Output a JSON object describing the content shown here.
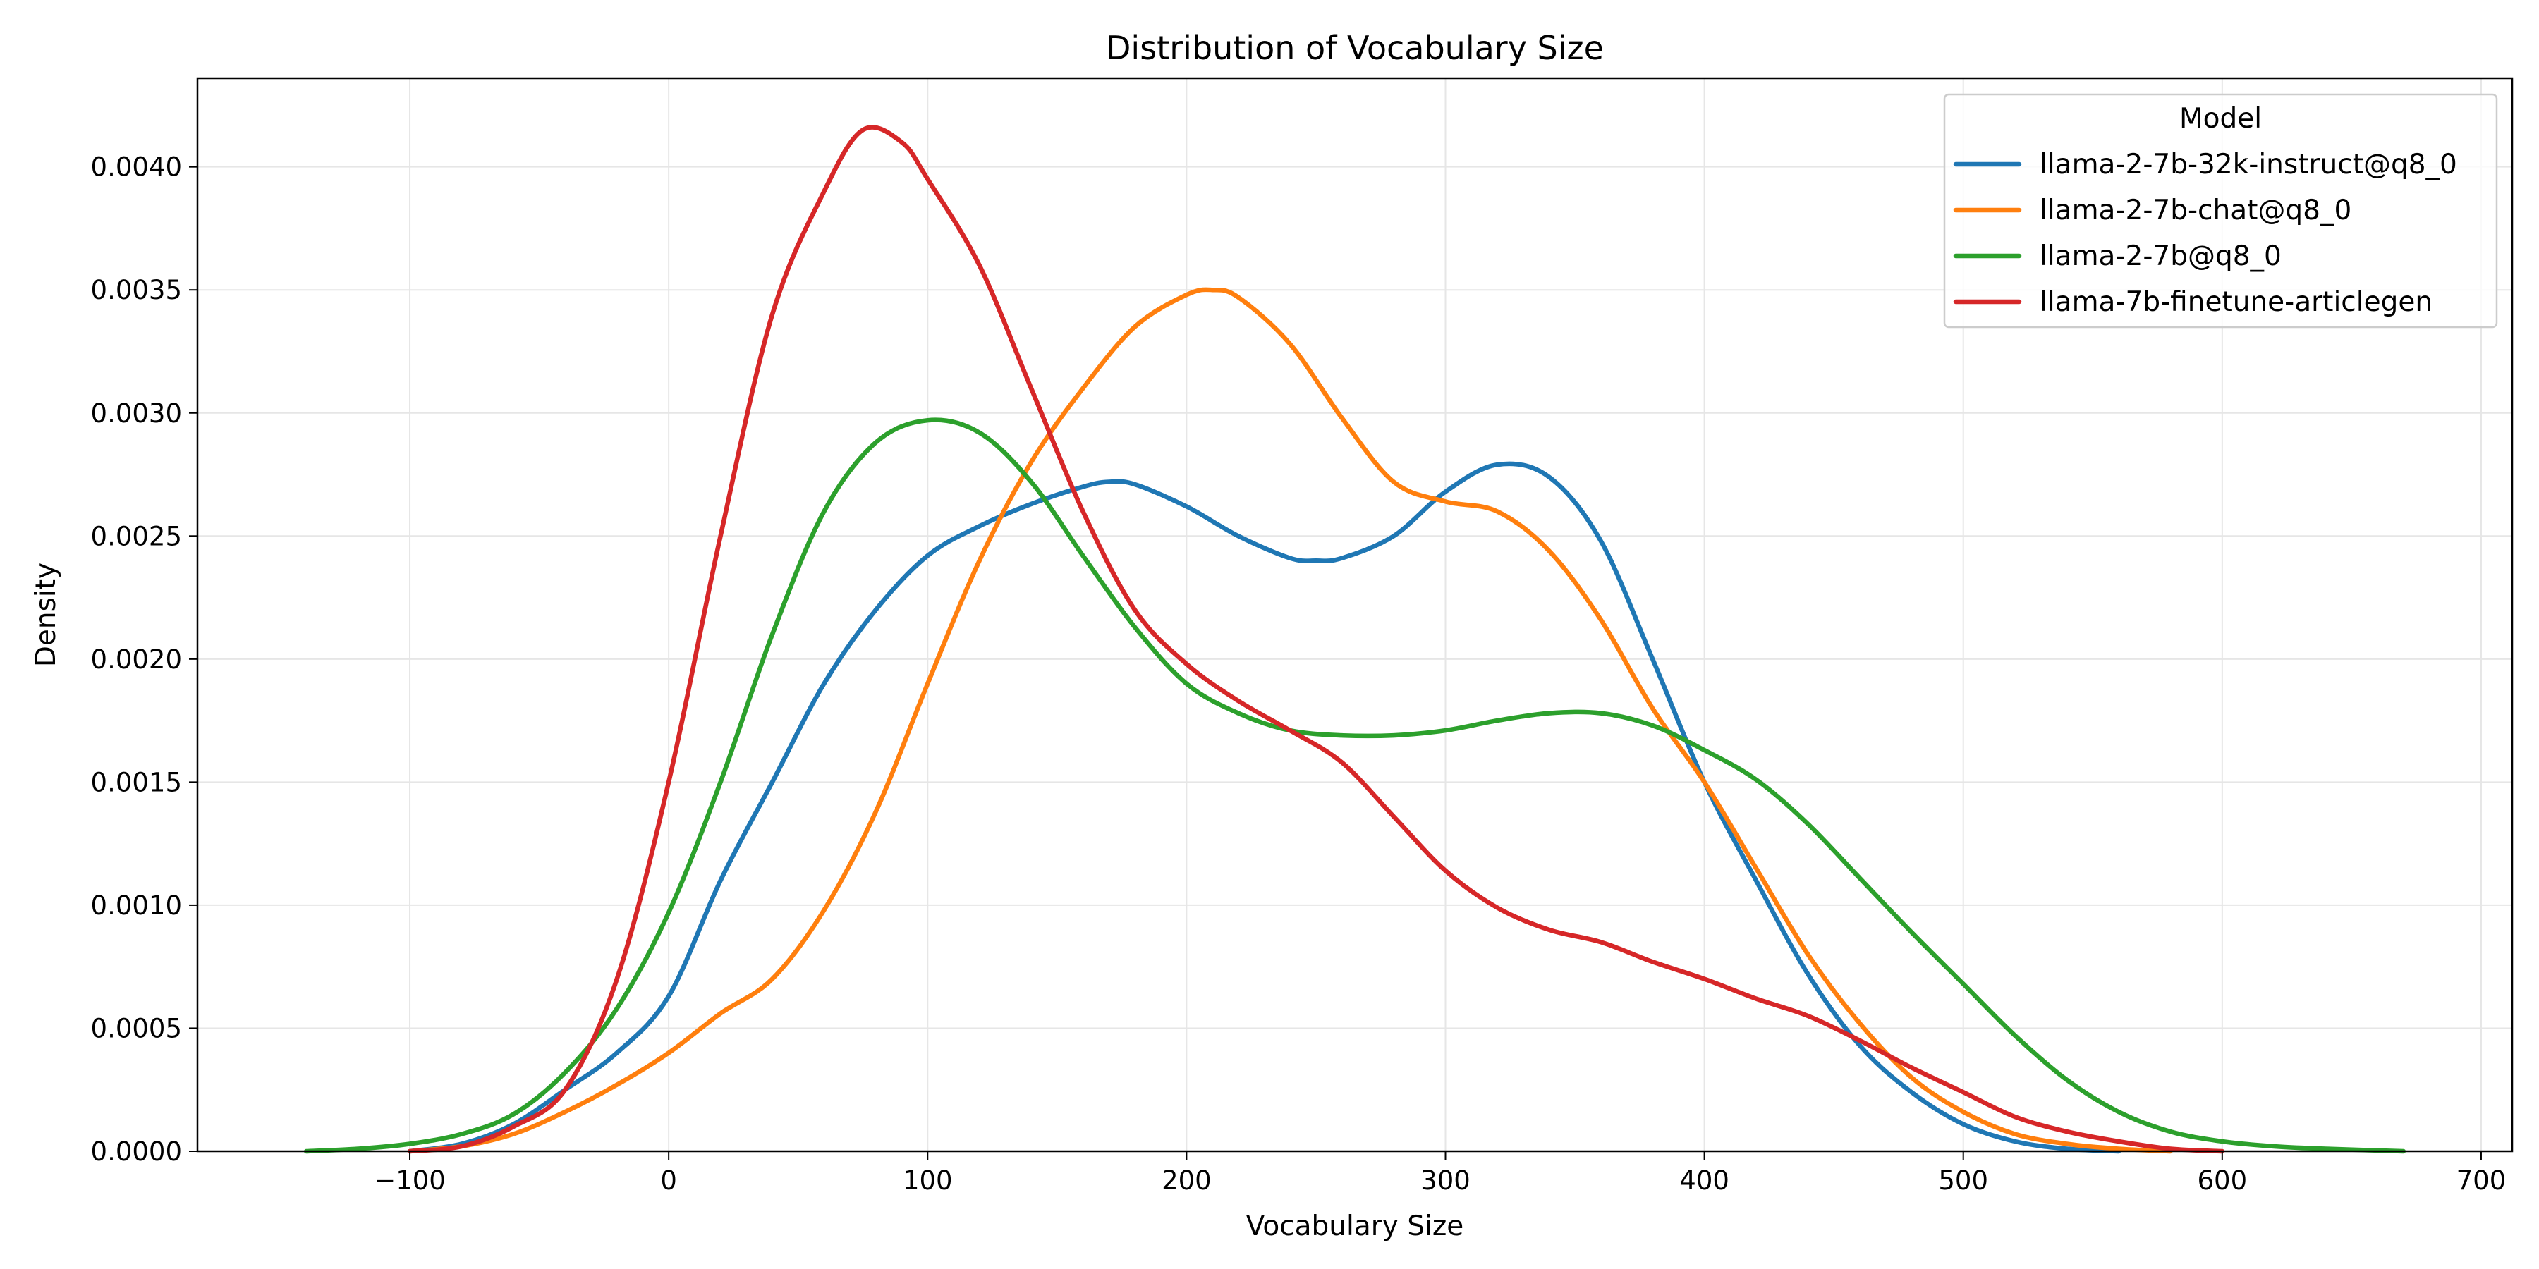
{
  "chart_data": {
    "type": "line",
    "title": "Distribution of Vocabulary Size",
    "xlabel": "Vocabulary Size",
    "ylabel": "Density",
    "xlim": [
      -182,
      712
    ],
    "ylim": [
      0,
      0.00436
    ],
    "xticks": [
      -100,
      0,
      100,
      200,
      300,
      400,
      500,
      600,
      700
    ],
    "xtick_labels": [
      "−100",
      "0",
      "100",
      "200",
      "300",
      "400",
      "500",
      "600",
      "700"
    ],
    "yticks": [
      0,
      0.0005,
      0.001,
      0.0015,
      0.002,
      0.0025,
      0.003,
      0.0035,
      0.004
    ],
    "ytick_labels": [
      "0.0000",
      "0.0005",
      "0.0010",
      "0.0015",
      "0.0020",
      "0.0025",
      "0.0030",
      "0.0035",
      "0.0040"
    ],
    "grid": true,
    "legend": {
      "title": "Model",
      "position": "top-right"
    },
    "series": [
      {
        "name": "llama-2-7b-32k-instruct@q8_0",
        "color": "#1f77b4",
        "points": [
          [
            -100,
            0
          ],
          [
            -80,
            3e-05
          ],
          [
            -60,
            0.00011
          ],
          [
            -40,
            0.00025
          ],
          [
            -20,
            0.0004
          ],
          [
            0,
            0.00063
          ],
          [
            20,
            0.0011
          ],
          [
            40,
            0.0015
          ],
          [
            60,
            0.0019
          ],
          [
            80,
            0.0022
          ],
          [
            100,
            0.00242
          ],
          [
            120,
            0.00254
          ],
          [
            140,
            0.00263
          ],
          [
            160,
            0.0027
          ],
          [
            170,
            0.00272
          ],
          [
            180,
            0.00271
          ],
          [
            200,
            0.00262
          ],
          [
            220,
            0.0025
          ],
          [
            240,
            0.00241
          ],
          [
            250,
            0.0024
          ],
          [
            260,
            0.00241
          ],
          [
            280,
            0.0025
          ],
          [
            300,
            0.00268
          ],
          [
            320,
            0.00279
          ],
          [
            340,
            0.00274
          ],
          [
            360,
            0.00248
          ],
          [
            380,
            0.002
          ],
          [
            400,
            0.0015
          ],
          [
            420,
            0.0011
          ],
          [
            440,
            0.00072
          ],
          [
            460,
            0.00043
          ],
          [
            480,
            0.00024
          ],
          [
            500,
            0.00011
          ],
          [
            520,
            4e-05
          ],
          [
            540,
            1e-05
          ],
          [
            560,
            0
          ]
        ]
      },
      {
        "name": "llama-2-7b-chat@q8_0",
        "color": "#ff7f0e",
        "points": [
          [
            -100,
            0
          ],
          [
            -80,
            2e-05
          ],
          [
            -60,
            7e-05
          ],
          [
            -40,
            0.00016
          ],
          [
            -20,
            0.00027
          ],
          [
            0,
            0.0004
          ],
          [
            20,
            0.00056
          ],
          [
            40,
            0.0007
          ],
          [
            60,
            0.00098
          ],
          [
            80,
            0.00138
          ],
          [
            100,
            0.0019
          ],
          [
            120,
            0.0024
          ],
          [
            140,
            0.0028
          ],
          [
            160,
            0.0031
          ],
          [
            180,
            0.00335
          ],
          [
            200,
            0.00348
          ],
          [
            210,
            0.0035
          ],
          [
            220,
            0.00347
          ],
          [
            240,
            0.00328
          ],
          [
            260,
            0.00298
          ],
          [
            280,
            0.00272
          ],
          [
            300,
            0.00264
          ],
          [
            320,
            0.0026
          ],
          [
            340,
            0.00244
          ],
          [
            360,
            0.00216
          ],
          [
            380,
            0.0018
          ],
          [
            400,
            0.0015
          ],
          [
            420,
            0.00115
          ],
          [
            440,
            0.0008
          ],
          [
            460,
            0.00052
          ],
          [
            480,
            0.0003
          ],
          [
            500,
            0.00016
          ],
          [
            520,
            7e-05
          ],
          [
            540,
            3e-05
          ],
          [
            560,
            1e-05
          ],
          [
            580,
            0
          ]
        ]
      },
      {
        "name": "llama-2-7b@q8_0",
        "color": "#2ca02c",
        "points": [
          [
            -140,
            0
          ],
          [
            -120,
            1e-05
          ],
          [
            -100,
            3e-05
          ],
          [
            -80,
            7e-05
          ],
          [
            -60,
            0.00015
          ],
          [
            -40,
            0.00032
          ],
          [
            -20,
            0.00058
          ],
          [
            0,
            0.00097
          ],
          [
            20,
            0.0015
          ],
          [
            40,
            0.0021
          ],
          [
            60,
            0.0026
          ],
          [
            80,
            0.00288
          ],
          [
            100,
            0.00297
          ],
          [
            120,
            0.00292
          ],
          [
            140,
            0.00272
          ],
          [
            160,
            0.00242
          ],
          [
            180,
            0.00213
          ],
          [
            200,
            0.0019
          ],
          [
            220,
            0.00178
          ],
          [
            240,
            0.00171
          ],
          [
            260,
            0.00169
          ],
          [
            280,
            0.00169
          ],
          [
            300,
            0.00171
          ],
          [
            320,
            0.00175
          ],
          [
            340,
            0.00178
          ],
          [
            360,
            0.00178
          ],
          [
            380,
            0.00173
          ],
          [
            400,
            0.00163
          ],
          [
            420,
            0.00151
          ],
          [
            440,
            0.00133
          ],
          [
            460,
            0.00111
          ],
          [
            480,
            0.00089
          ],
          [
            500,
            0.00068
          ],
          [
            520,
            0.00047
          ],
          [
            540,
            0.00029
          ],
          [
            560,
            0.00016
          ],
          [
            580,
            8e-05
          ],
          [
            600,
            4e-05
          ],
          [
            620,
            2e-05
          ],
          [
            640,
            1e-05
          ],
          [
            670,
            0
          ]
        ]
      },
      {
        "name": "llama-7b-finetune-articlegen",
        "color": "#d62728",
        "points": [
          [
            -100,
            0
          ],
          [
            -80,
            2e-05
          ],
          [
            -60,
            0.0001
          ],
          [
            -40,
            0.00025
          ],
          [
            -20,
            0.0007
          ],
          [
            0,
            0.0015
          ],
          [
            20,
            0.0025
          ],
          [
            40,
            0.0034
          ],
          [
            60,
            0.0039
          ],
          [
            75,
            0.00415
          ],
          [
            90,
            0.0041
          ],
          [
            100,
            0.00395
          ],
          [
            120,
            0.0036
          ],
          [
            140,
            0.0031
          ],
          [
            160,
            0.0026
          ],
          [
            180,
            0.0022
          ],
          [
            200,
            0.00198
          ],
          [
            220,
            0.00183
          ],
          [
            240,
            0.00171
          ],
          [
            260,
            0.00158
          ],
          [
            280,
            0.00136
          ],
          [
            300,
            0.00114
          ],
          [
            320,
            0.00099
          ],
          [
            340,
            0.0009
          ],
          [
            360,
            0.00085
          ],
          [
            380,
            0.00077
          ],
          [
            400,
            0.0007
          ],
          [
            420,
            0.00062
          ],
          [
            440,
            0.00055
          ],
          [
            460,
            0.00045
          ],
          [
            480,
            0.00034
          ],
          [
            500,
            0.00024
          ],
          [
            520,
            0.00014
          ],
          [
            540,
            8e-05
          ],
          [
            560,
            4e-05
          ],
          [
            580,
            1e-05
          ],
          [
            600,
            0
          ]
        ]
      }
    ]
  }
}
